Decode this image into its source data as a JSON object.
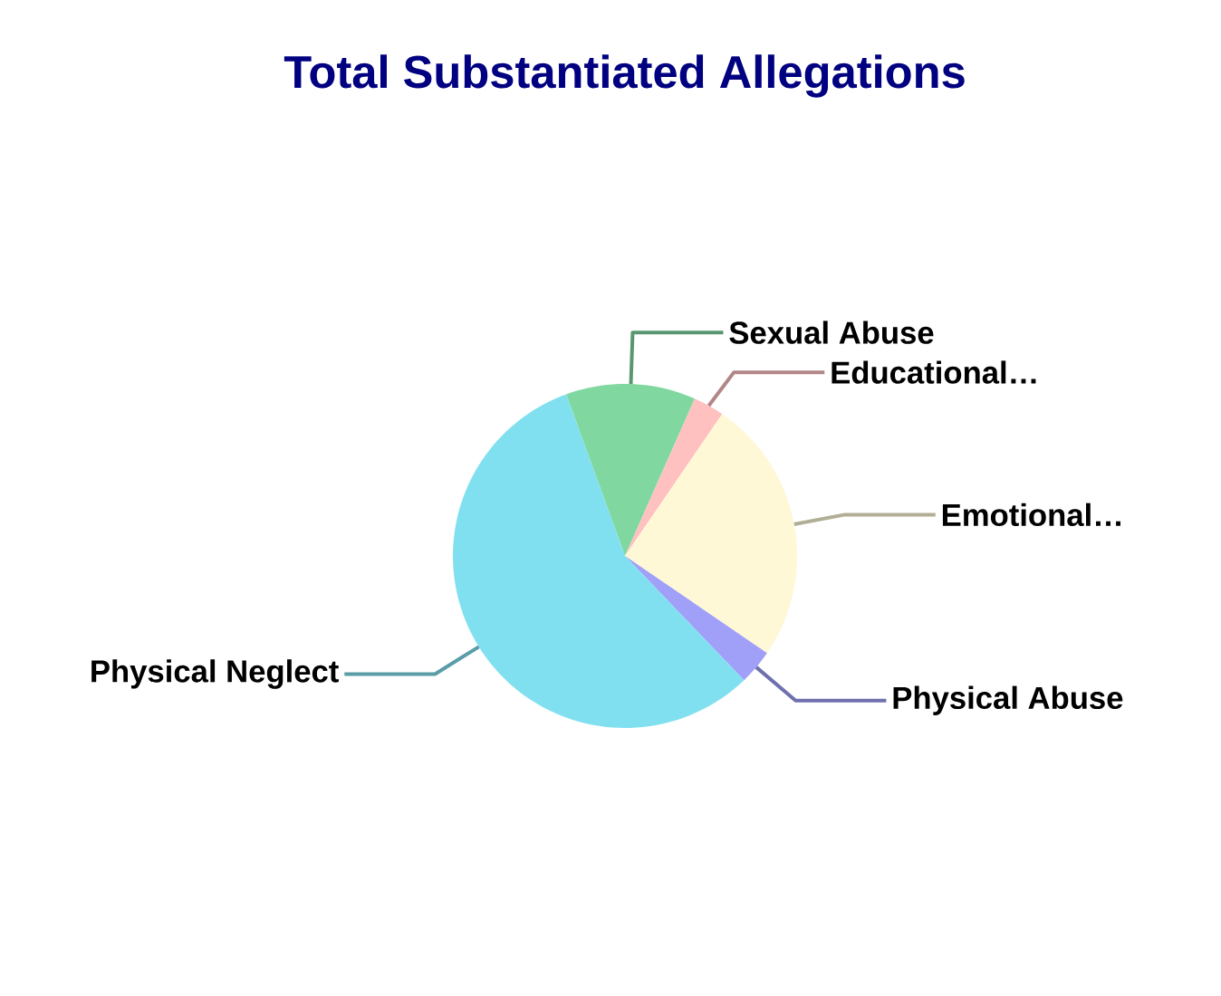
{
  "chart_data": {
    "type": "pie",
    "title": "Total Substantiated Allegations",
    "categories": [
      "Sexual Abuse",
      "Educational…",
      "Emotional…",
      "Physical Abuse",
      "Physical Neglect"
    ],
    "values": [
      12.2,
      2.9,
      25,
      3.3,
      56.6
    ],
    "colors": [
      "#80d8a0",
      "#ffc0c0",
      "#fff8d6",
      "#a0a0f8",
      "#80e0f0"
    ]
  }
}
